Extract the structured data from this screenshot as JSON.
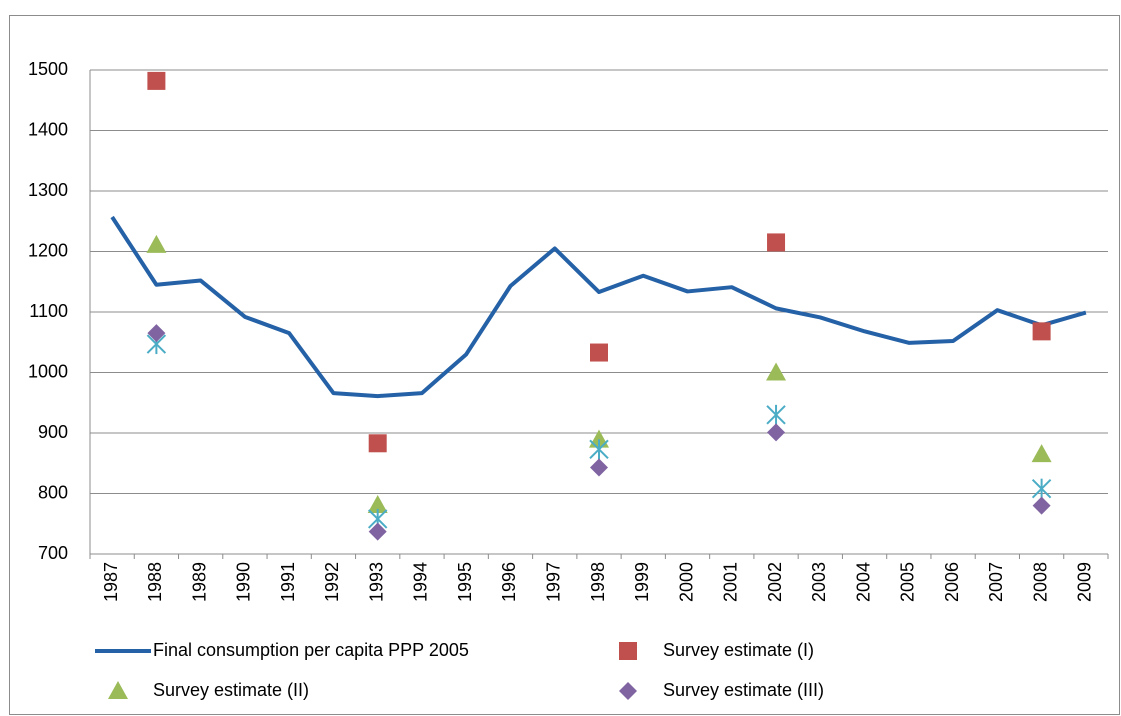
{
  "chart_data": {
    "type": "line",
    "categories": [
      "1987",
      "1988",
      "1989",
      "1990",
      "1991",
      "1992",
      "1993",
      "1994",
      "1995",
      "1996",
      "1997",
      "1998",
      "1999",
      "2000",
      "2001",
      "2002",
      "2003",
      "2004",
      "2005",
      "2006",
      "2007",
      "2008",
      "2009"
    ],
    "series": [
      {
        "name": "Final consumption per capita PPP 2005",
        "color": "#2561a6",
        "values": [
          1257,
          1145,
          1152,
          1092,
          1065,
          966,
          961,
          966,
          1030,
          1143,
          1205,
          1133,
          1160,
          1134,
          1141,
          1106,
          1091,
          1068,
          1049,
          1052,
          1103,
          1078,
          1099
        ]
      },
      {
        "name": "Survey estimate (I)",
        "color": "#c0504d",
        "marker": "square",
        "values": [
          null,
          1482,
          null,
          null,
          null,
          null,
          883,
          null,
          null,
          null,
          null,
          1033,
          null,
          null,
          null,
          1215,
          null,
          null,
          null,
          null,
          null,
          1068,
          null
        ]
      },
      {
        "name": "Survey estimate (II)",
        "color": "#9bbb59",
        "marker": "triangle",
        "values": [
          null,
          1211,
          null,
          null,
          null,
          null,
          781,
          null,
          null,
          null,
          null,
          889,
          null,
          null,
          null,
          1000,
          null,
          null,
          null,
          null,
          null,
          865,
          null
        ]
      },
      {
        "color": "#4bacc6",
        "marker": "star",
        "values": [
          null,
          1047,
          null,
          null,
          null,
          null,
          758,
          null,
          null,
          null,
          null,
          873,
          null,
          null,
          null,
          930,
          null,
          null,
          null,
          null,
          null,
          808,
          null
        ]
      },
      {
        "name": "Survey estimate (III)",
        "color": "#8064a2",
        "marker": "diamond",
        "values": [
          null,
          1065,
          null,
          null,
          null,
          null,
          737,
          null,
          null,
          null,
          null,
          843,
          null,
          null,
          null,
          901,
          null,
          null,
          null,
          null,
          null,
          780,
          null
        ]
      }
    ],
    "ylim": [
      700,
      1500
    ],
    "yticks": [
      700,
      800,
      900,
      1000,
      1100,
      1200,
      1300,
      1400,
      1500
    ],
    "grid": true
  }
}
